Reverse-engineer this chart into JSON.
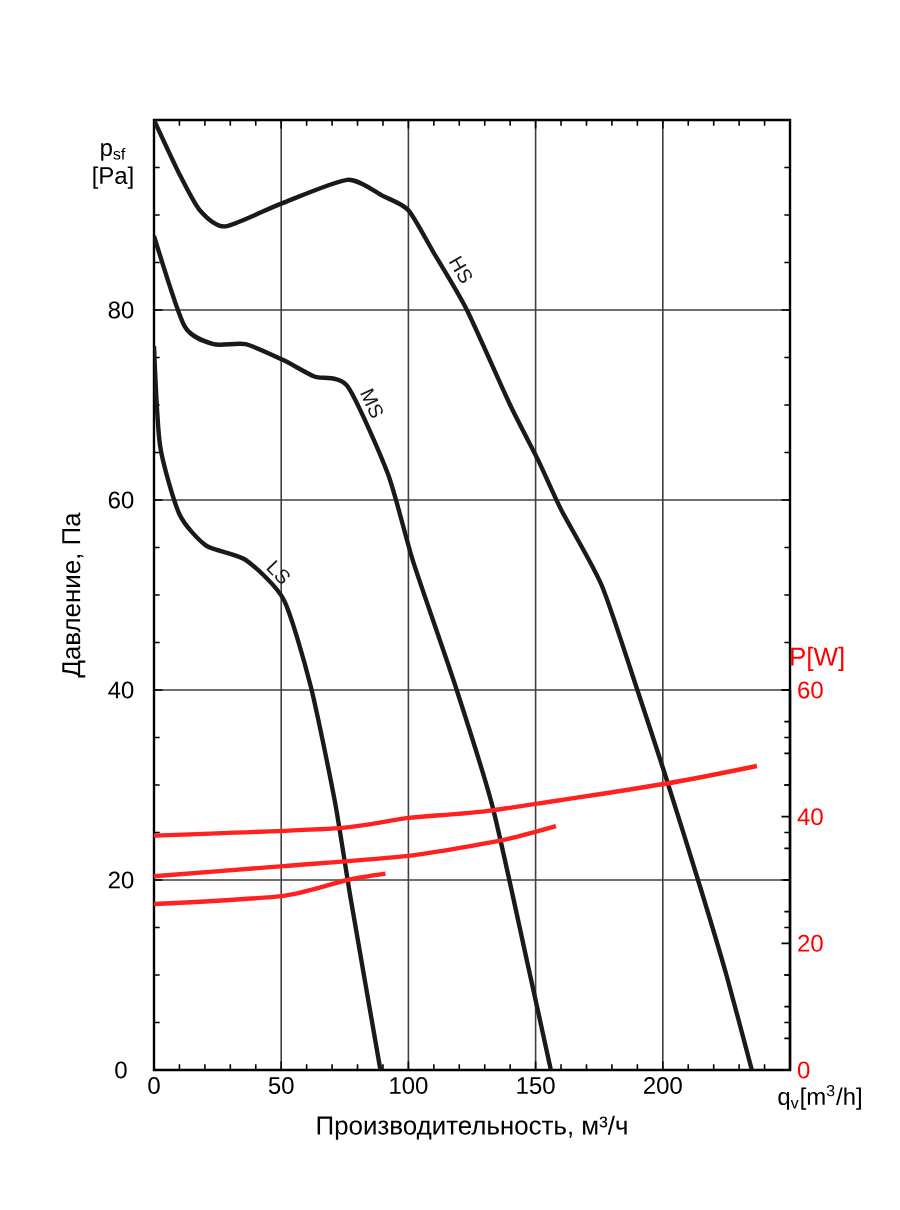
{
  "chart_data": {
    "type": "line",
    "xlabel": "Производительность, м³/ч",
    "ylabel": "Давление, Па",
    "y2label": "P[W]",
    "xlim": [
      0,
      250
    ],
    "ylim": [
      0,
      100
    ],
    "y2lim": [
      0,
      150
    ],
    "xticks": [
      0,
      50,
      100,
      150,
      200,
      {
        "value": 250,
        "label": null
      }
    ],
    "yticks": [
      0,
      20,
      40,
      60,
      80,
      {
        "value": 100,
        "label": null
      }
    ],
    "annotations": [
      "p$_{sf}$ [Pa]",
      "q$_{v}$[m$^{3}$/h]"
    ],
    "y2ticks": [
      0,
      20,
      40,
      60
    ],
    "grid": true,
    "marker": "none",
    "line_style": "solid",
    "series": [
      {
        "name": "HS",
        "color": "#1a1a1a",
        "x": [
          0,
          10,
          18,
          28,
          50,
          76,
          90,
          100,
          110,
          123,
          140,
          151,
          160,
          176,
          190,
          201,
          215,
          225,
          235
        ],
        "values": [
          100,
          94.3,
          90.5,
          88.8,
          91.2,
          93.7,
          92,
          90.5,
          86,
          80,
          70,
          64.2,
          59,
          51,
          40,
          31,
          19,
          10,
          0
        ]
      },
      {
        "name": "MS",
        "color": "#1a1a1a",
        "x": [
          0,
          12,
          23.5,
          36,
          51,
          63,
          76,
          92,
          102,
          118.5,
          133,
          147,
          156
        ],
        "values": [
          87.8,
          78.3,
          76.4,
          76.4,
          74.7,
          73,
          72,
          62.7,
          53.4,
          40.4,
          27.8,
          11,
          0
        ]
      },
      {
        "name": "LS",
        "color": "#1a1a1a",
        "x": [
          0,
          2.4,
          10,
          20.5,
          36,
          51,
          61.6,
          71,
          77.4,
          89
        ],
        "values": [
          76.2,
          65.7,
          58.5,
          55.2,
          53.7,
          49.5,
          40.4,
          28.4,
          17.9,
          0
        ]
      },
      {
        "axis": "y2",
        "color": "#ff2020",
        "x": [
          0,
          73,
          100,
          133,
          201,
          237
        ],
        "values": [
          37,
          38.2,
          39.8,
          41,
          45.2,
          48
        ]
      },
      {
        "axis": "y2",
        "color": "#ff2020",
        "x": [
          0,
          51,
          100,
          137,
          158
        ],
        "values": [
          30.6,
          32.2,
          33.8,
          36.3,
          38.5
        ]
      },
      {
        "axis": "y2",
        "color": "#ff2020",
        "x": [
          0,
          51,
          76,
          91
        ],
        "values": [
          26.2,
          27.5,
          30,
          31
        ]
      }
    ]
  }
}
